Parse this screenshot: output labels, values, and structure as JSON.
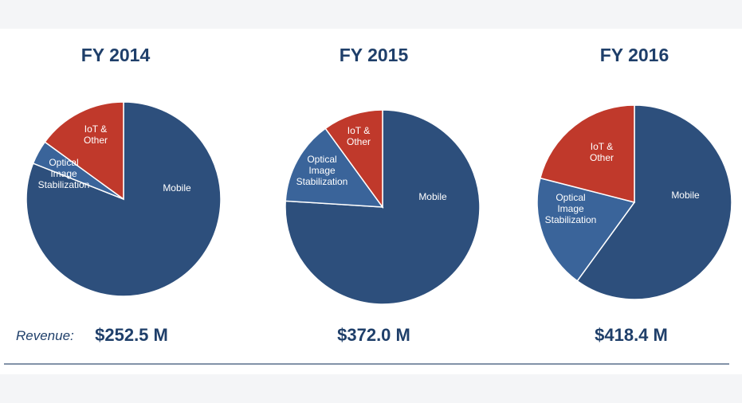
{
  "chart_data": [
    {
      "type": "pie",
      "title": "FY 2014",
      "revenue": "$252.5 M",
      "slices": [
        {
          "label": "Mobile",
          "value": 81,
          "color": "#2d4f7c"
        },
        {
          "label": "Optical Image Stabilization",
          "value": 4,
          "color": "#3a649a"
        },
        {
          "label": "IoT & Other",
          "value": 15,
          "color": "#c0392b"
        }
      ]
    },
    {
      "type": "pie",
      "title": "FY 2015",
      "revenue": "$372.0 M",
      "slices": [
        {
          "label": "Mobile",
          "value": 76,
          "color": "#2d4f7c"
        },
        {
          "label": "Optical Image Stabilization",
          "value": 14,
          "color": "#3a649a"
        },
        {
          "label": "IoT & Other",
          "value": 10,
          "color": "#c0392b"
        }
      ]
    },
    {
      "type": "pie",
      "title": "FY 2016",
      "revenue": "$418.4 M",
      "slices": [
        {
          "label": "Mobile",
          "value": 60,
          "color": "#2d4f7c"
        },
        {
          "label": "Optical Image Stabilization",
          "value": 19,
          "color": "#3a649a"
        },
        {
          "label": "IoT & Other",
          "value": 21,
          "color": "#c0392b"
        }
      ]
    }
  ],
  "revenue_prefix": "Revenue:"
}
